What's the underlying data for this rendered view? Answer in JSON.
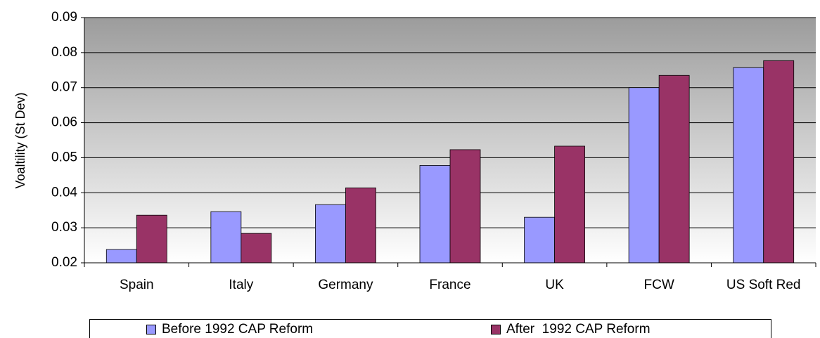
{
  "chart_data": {
    "type": "bar",
    "y_label": "Voaltility (St Dev)",
    "categories": [
      "Spain",
      "Italy",
      "Germany",
      "France",
      "UK",
      "FCW",
      "US Soft Red"
    ],
    "series": [
      {
        "name": "Before 1992 CAP Reform",
        "color": "#9999ff",
        "values": [
          0.0238,
          0.0346,
          0.0366,
          0.0478,
          0.033,
          0.07,
          0.0757
        ]
      },
      {
        "name": "After  1992 CAP Reform",
        "color": "#993366",
        "values": [
          0.0336,
          0.0284,
          0.0414,
          0.0523,
          0.0533,
          0.0735,
          0.0777
        ]
      }
    ],
    "ylim": [
      0.02,
      0.09
    ],
    "yticks": [
      0.02,
      0.03,
      0.04,
      0.05,
      0.06,
      0.07,
      0.08,
      0.09
    ],
    "grid": true,
    "legend": "bottom"
  }
}
